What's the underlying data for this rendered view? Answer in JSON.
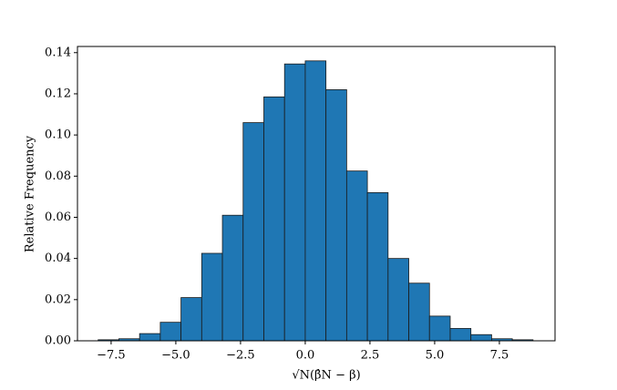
{
  "chart_data": {
    "type": "histogram",
    "xlabel": "√N(β̂N − β)",
    "ylabel": "Relative Frequency",
    "bins": [
      -8.0,
      -7.2,
      -6.4,
      -5.6,
      -4.8,
      -4.0,
      -3.2,
      -2.4,
      -1.6,
      -0.8,
      0.0,
      0.8,
      1.6,
      2.4,
      3.2,
      4.0,
      4.8,
      5.6,
      6.4,
      7.2,
      8.0,
      8.8
    ],
    "values": [
      0.0005,
      0.001,
      0.0035,
      0.009,
      0.021,
      0.0425,
      0.061,
      0.106,
      0.1185,
      0.1345,
      0.136,
      0.122,
      0.0825,
      0.072,
      0.04,
      0.028,
      0.012,
      0.006,
      0.003,
      0.001,
      0.0005
    ],
    "color": "#1f77b4",
    "edgecolor": "#1a1a1a",
    "xlim": [
      -8.8,
      9.65
    ],
    "ylim": [
      0,
      0.143
    ],
    "xticks": [
      {
        "value": -7.5,
        "label": "−7.5"
      },
      {
        "value": -5.0,
        "label": "−5.0"
      },
      {
        "value": -2.5,
        "label": "−2.5"
      },
      {
        "value": 0,
        "label": "0.0"
      },
      {
        "value": 2.5,
        "label": "2.5"
      },
      {
        "value": 5,
        "label": "5.0"
      },
      {
        "value": 7.5,
        "label": "7.5"
      }
    ],
    "yticks": [
      {
        "value": 0,
        "label": "0.00"
      },
      {
        "value": 0.02,
        "label": "0.02"
      },
      {
        "value": 0.04,
        "label": "0.04"
      },
      {
        "value": 0.06,
        "label": "0.06"
      },
      {
        "value": 0.08,
        "label": "0.08"
      },
      {
        "value": 0.1,
        "label": "0.10"
      },
      {
        "value": 0.12,
        "label": "0.12"
      },
      {
        "value": 0.14,
        "label": "0.14"
      }
    ]
  }
}
